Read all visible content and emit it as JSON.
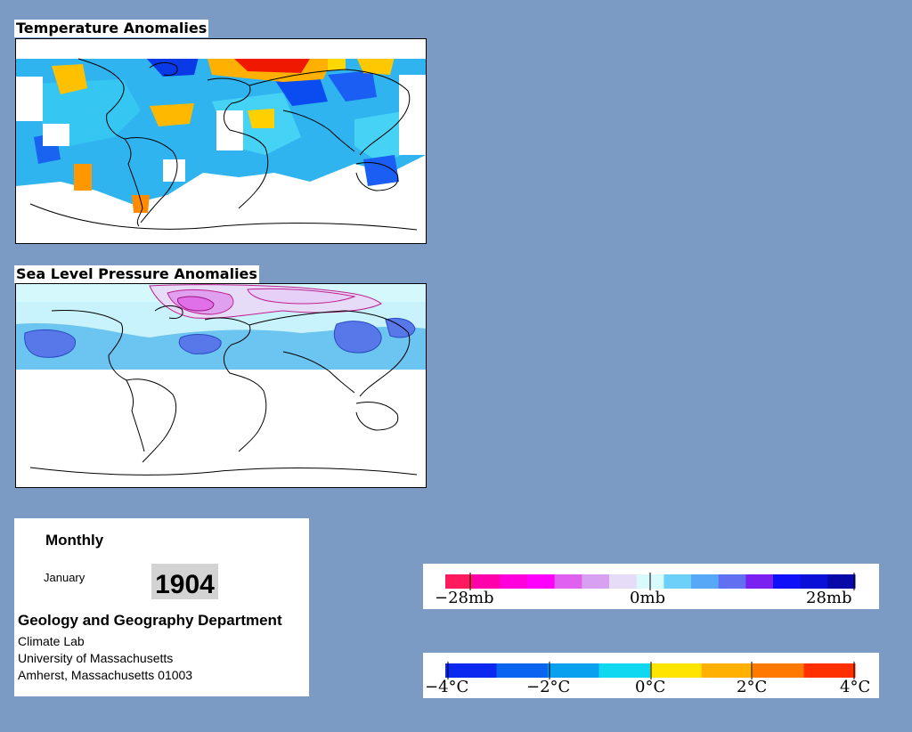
{
  "temperature_panel": {
    "title": "Temperature Anomalies"
  },
  "pressure_panel": {
    "title": "Sea Level Pressure Anomalies"
  },
  "info": {
    "frequency": "Monthly",
    "month": "January",
    "year": "1904",
    "department": "Geology and Geography Department",
    "lab": "Climate Lab",
    "university": "University of Massachusetts",
    "address": "Amherst, Massachusetts 01003"
  },
  "pressure_legend": {
    "labels": [
      "−28mb",
      "0mb",
      "28mb"
    ],
    "colors": [
      "#ff1a5e",
      "#ff00aa",
      "#ff00dd",
      "#ff00ff",
      "#e060f0",
      "#d8a0f0",
      "#e6dcf8",
      "#d8fafc",
      "#6cd0f8",
      "#58a8f8",
      "#6070f0",
      "#7a20f0",
      "#1010f8",
      "#0a10d8",
      "#0808a8"
    ]
  },
  "temperature_legend": {
    "labels": [
      "−4°C",
      "−2°C",
      "0°C",
      "2°C",
      "4°C"
    ],
    "colors": [
      "#0a28f0",
      "#0a64f0",
      "#0aa0f0",
      "#10d8f0",
      "#ffe400",
      "#ffb000",
      "#ff7800",
      "#ff3000"
    ]
  }
}
